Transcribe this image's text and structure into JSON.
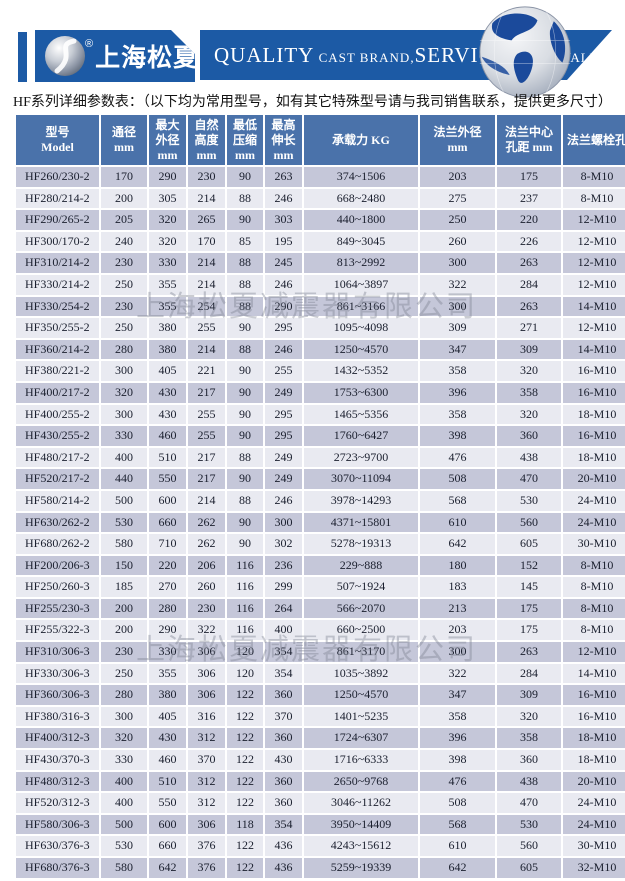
{
  "brand": {
    "company_name": "上海松夏",
    "registered_mark": "®",
    "banner_segments": [
      {
        "text": "QUALITY",
        "style": "big"
      },
      {
        "text": " CAST BRAND,",
        "style": "small"
      },
      {
        "text": "SERVICE",
        "style": "big"
      },
      {
        "text": " CREAT VALUE",
        "style": "small"
      }
    ]
  },
  "subtitle": "HF系列详细参数表：（以下均为常用型号，如有其它特殊型号请与我司销售联系，提供更多尺寸）",
  "watermark": {
    "text": "上海松夏减震器有限公司"
  },
  "colors": {
    "banner_blue": "#1c5aa5",
    "table_header_blue": "#4a72aa",
    "row_stripe_dark": "#c5c7d9",
    "row_stripe_light": "#e9eaf1",
    "globe_ocean_blue": "#1b4a9b"
  },
  "table": {
    "columns": [
      {
        "lines": [
          "型号",
          "Model"
        ]
      },
      {
        "lines": [
          "通径",
          "mm"
        ]
      },
      {
        "lines": [
          "最大",
          "外径",
          "mm"
        ]
      },
      {
        "lines": [
          "自然",
          "高度",
          "mm"
        ]
      },
      {
        "lines": [
          "最低",
          "压缩",
          "mm"
        ]
      },
      {
        "lines": [
          "最高",
          "伸长",
          "mm"
        ]
      },
      {
        "lines": [
          "承载力 KG"
        ]
      },
      {
        "lines": [
          "法兰外径",
          "mm"
        ]
      },
      {
        "lines": [
          "法兰中心",
          "孔距 mm"
        ]
      },
      {
        "lines": [
          "法兰螺栓孔"
        ]
      }
    ],
    "rows": [
      [
        "HF260/230-2",
        "170",
        "290",
        "230",
        "90",
        "263",
        "374~1506",
        "203",
        "175",
        "8-M10"
      ],
      [
        "HF280/214-2",
        "200",
        "305",
        "214",
        "88",
        "246",
        "668~2480",
        "275",
        "237",
        "8-M10"
      ],
      [
        "HF290/265-2",
        "205",
        "320",
        "265",
        "90",
        "303",
        "440~1800",
        "250",
        "220",
        "12-M10"
      ],
      [
        "HF300/170-2",
        "240",
        "320",
        "170",
        "85",
        "195",
        "849~3045",
        "260",
        "226",
        "12-M10"
      ],
      [
        "HF310/214-2",
        "230",
        "330",
        "214",
        "88",
        "245",
        "813~2992",
        "300",
        "263",
        "12-M10"
      ],
      [
        "HF330/214-2",
        "250",
        "355",
        "214",
        "88",
        "246",
        "1064~3897",
        "322",
        "284",
        "12-M10"
      ],
      [
        "HF330/254-2",
        "230",
        "355",
        "254",
        "88",
        "290",
        "861~3166",
        "300",
        "263",
        "14-M10"
      ],
      [
        "HF350/255-2",
        "250",
        "380",
        "255",
        "90",
        "295",
        "1095~4098",
        "309",
        "271",
        "12-M10"
      ],
      [
        "HF360/214-2",
        "280",
        "380",
        "214",
        "88",
        "246",
        "1250~4570",
        "347",
        "309",
        "14-M10"
      ],
      [
        "HF380/221-2",
        "300",
        "405",
        "221",
        "90",
        "255",
        "1432~5352",
        "358",
        "320",
        "16-M10"
      ],
      [
        "HF400/217-2",
        "320",
        "430",
        "217",
        "90",
        "249",
        "1753~6300",
        "396",
        "358",
        "16-M10"
      ],
      [
        "HF400/255-2",
        "300",
        "430",
        "255",
        "90",
        "295",
        "1465~5356",
        "358",
        "320",
        "18-M10"
      ],
      [
        "HF430/255-2",
        "330",
        "460",
        "255",
        "90",
        "295",
        "1760~6427",
        "398",
        "360",
        "16-M10"
      ],
      [
        "HF480/217-2",
        "400",
        "510",
        "217",
        "88",
        "249",
        "2723~9700",
        "476",
        "438",
        "18-M10"
      ],
      [
        "HF520/217-2",
        "440",
        "550",
        "217",
        "90",
        "249",
        "3070~11094",
        "508",
        "470",
        "20-M10"
      ],
      [
        "HF580/214-2",
        "500",
        "600",
        "214",
        "88",
        "246",
        "3978~14293",
        "568",
        "530",
        "24-M10"
      ],
      [
        "HF630/262-2",
        "530",
        "660",
        "262",
        "90",
        "300",
        "4371~15801",
        "610",
        "560",
        "24-M10"
      ],
      [
        "HF680/262-2",
        "580",
        "710",
        "262",
        "90",
        "302",
        "5278~19313",
        "642",
        "605",
        "30-M10"
      ],
      [
        "HF200/206-3",
        "150",
        "220",
        "206",
        "116",
        "236",
        "229~888",
        "180",
        "152",
        "8-M10"
      ],
      [
        "HF250/260-3",
        "185",
        "270",
        "260",
        "116",
        "299",
        "507~1924",
        "183",
        "145",
        "8-M10"
      ],
      [
        "HF255/230-3",
        "200",
        "280",
        "230",
        "116",
        "264",
        "566~2070",
        "213",
        "175",
        "8-M10"
      ],
      [
        "HF255/322-3",
        "200",
        "290",
        "322",
        "116",
        "400",
        "660~2500",
        "203",
        "175",
        "8-M10"
      ],
      [
        "HF310/306-3",
        "230",
        "330",
        "306",
        "120",
        "354",
        "861~3170",
        "300",
        "263",
        "12-M10"
      ],
      [
        "HF330/306-3",
        "250",
        "355",
        "306",
        "120",
        "354",
        "1035~3892",
        "322",
        "284",
        "14-M10"
      ],
      [
        "HF360/306-3",
        "280",
        "380",
        "306",
        "122",
        "360",
        "1250~4570",
        "347",
        "309",
        "16-M10"
      ],
      [
        "HF380/316-3",
        "300",
        "405",
        "316",
        "122",
        "370",
        "1401~5235",
        "358",
        "320",
        "16-M10"
      ],
      [
        "HF400/312-3",
        "320",
        "430",
        "312",
        "122",
        "360",
        "1724~6307",
        "396",
        "358",
        "18-M10"
      ],
      [
        "HF430/370-3",
        "330",
        "460",
        "370",
        "122",
        "430",
        "1716~6333",
        "398",
        "360",
        "18-M10"
      ],
      [
        "HF480/312-3",
        "400",
        "510",
        "312",
        "122",
        "360",
        "2650~9768",
        "476",
        "438",
        "20-M10"
      ],
      [
        "HF520/312-3",
        "400",
        "550",
        "312",
        "122",
        "360",
        "3046~11262",
        "508",
        "470",
        "24-M10"
      ],
      [
        "HF580/306-3",
        "500",
        "600",
        "306",
        "118",
        "354",
        "3950~14409",
        "568",
        "530",
        "24-M10"
      ],
      [
        "HF630/376-3",
        "530",
        "660",
        "376",
        "122",
        "436",
        "4243~15612",
        "610",
        "560",
        "30-M10"
      ],
      [
        "HF680/376-3",
        "580",
        "642",
        "376",
        "122",
        "436",
        "5259~19339",
        "642",
        "605",
        "32-M10"
      ]
    ]
  }
}
